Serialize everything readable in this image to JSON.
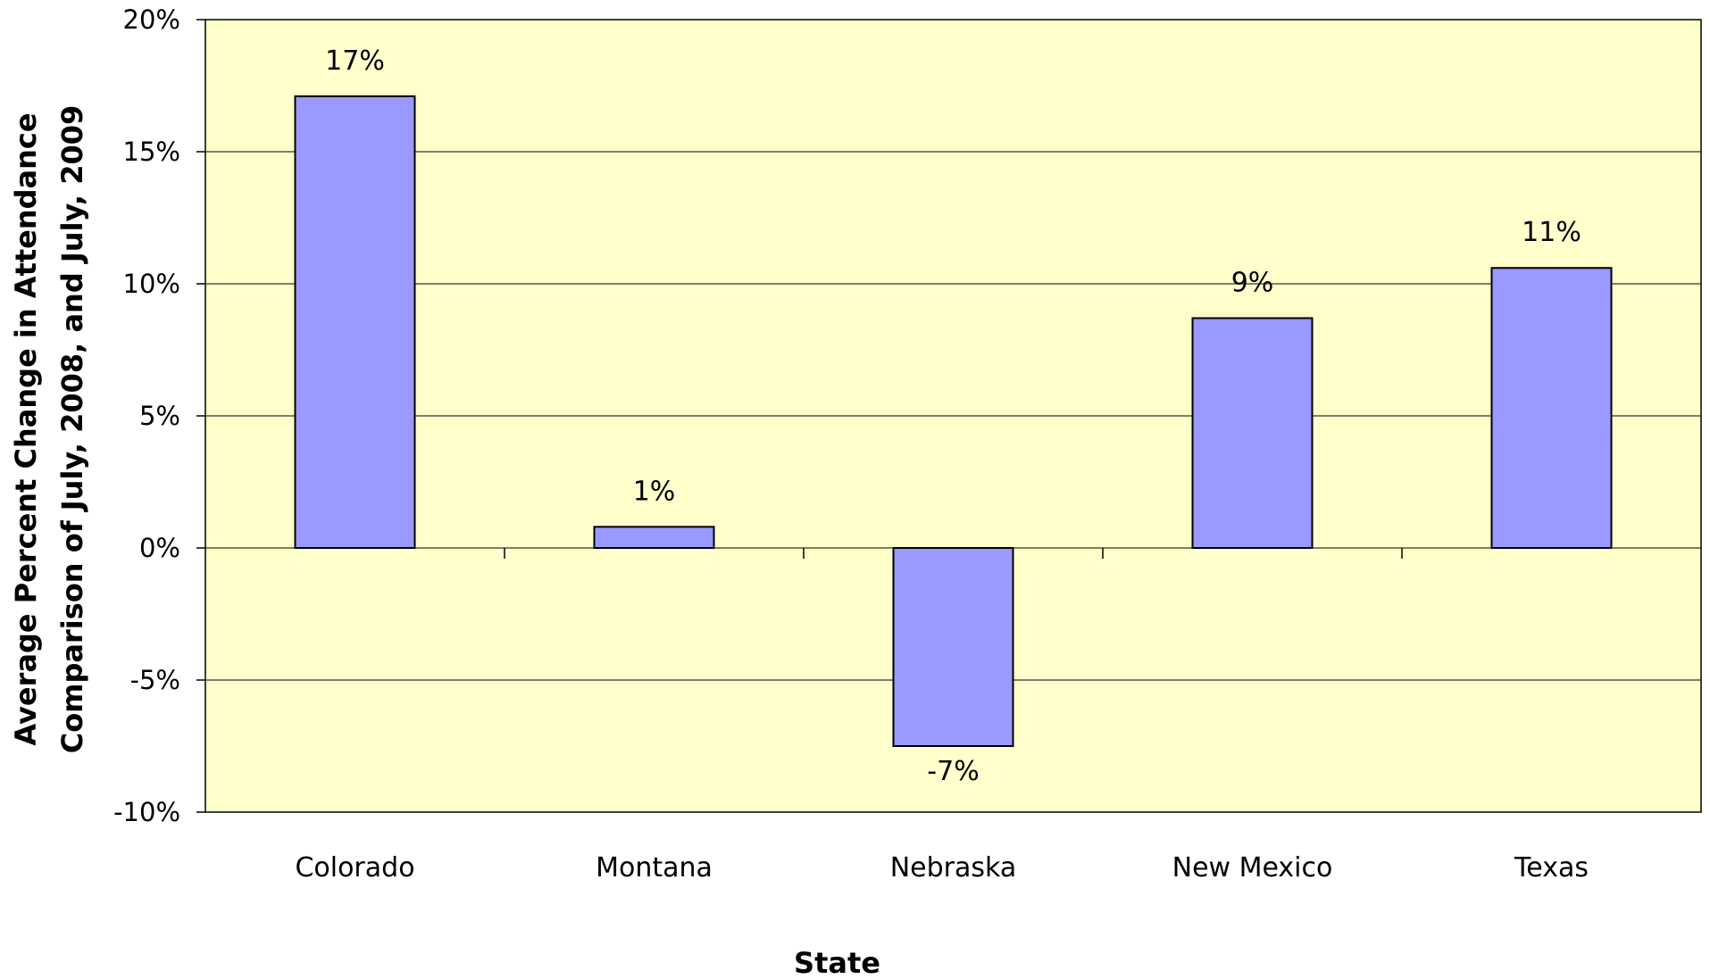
{
  "chart_data": {
    "type": "bar",
    "title": "",
    "xlabel": "State",
    "ylabel_lines": [
      "Average Percent Change in Attendance",
      "Comparison of July, 2008, and July, 2009"
    ],
    "categories": [
      "Colorado",
      "Montana",
      "Nebraska",
      "New Mexico",
      "Texas"
    ],
    "values": [
      17.1,
      0.8,
      -7.5,
      8.7,
      10.6
    ],
    "data_labels": [
      "17%",
      "1%",
      "-7%",
      "9%",
      "11%"
    ],
    "ylim": [
      -10,
      20
    ],
    "yticks": [
      20,
      15,
      10,
      5,
      0,
      -5,
      -10
    ],
    "ytick_labels": [
      "20%",
      "15%",
      "10%",
      "5%",
      "0%",
      "-5%",
      "-10%"
    ],
    "grid": true,
    "legend": "none",
    "colors": {
      "plot_background": "#FFFFCC",
      "bar_fill": "#9999FF",
      "bar_stroke": "#000000",
      "grid": "#000000"
    }
  }
}
